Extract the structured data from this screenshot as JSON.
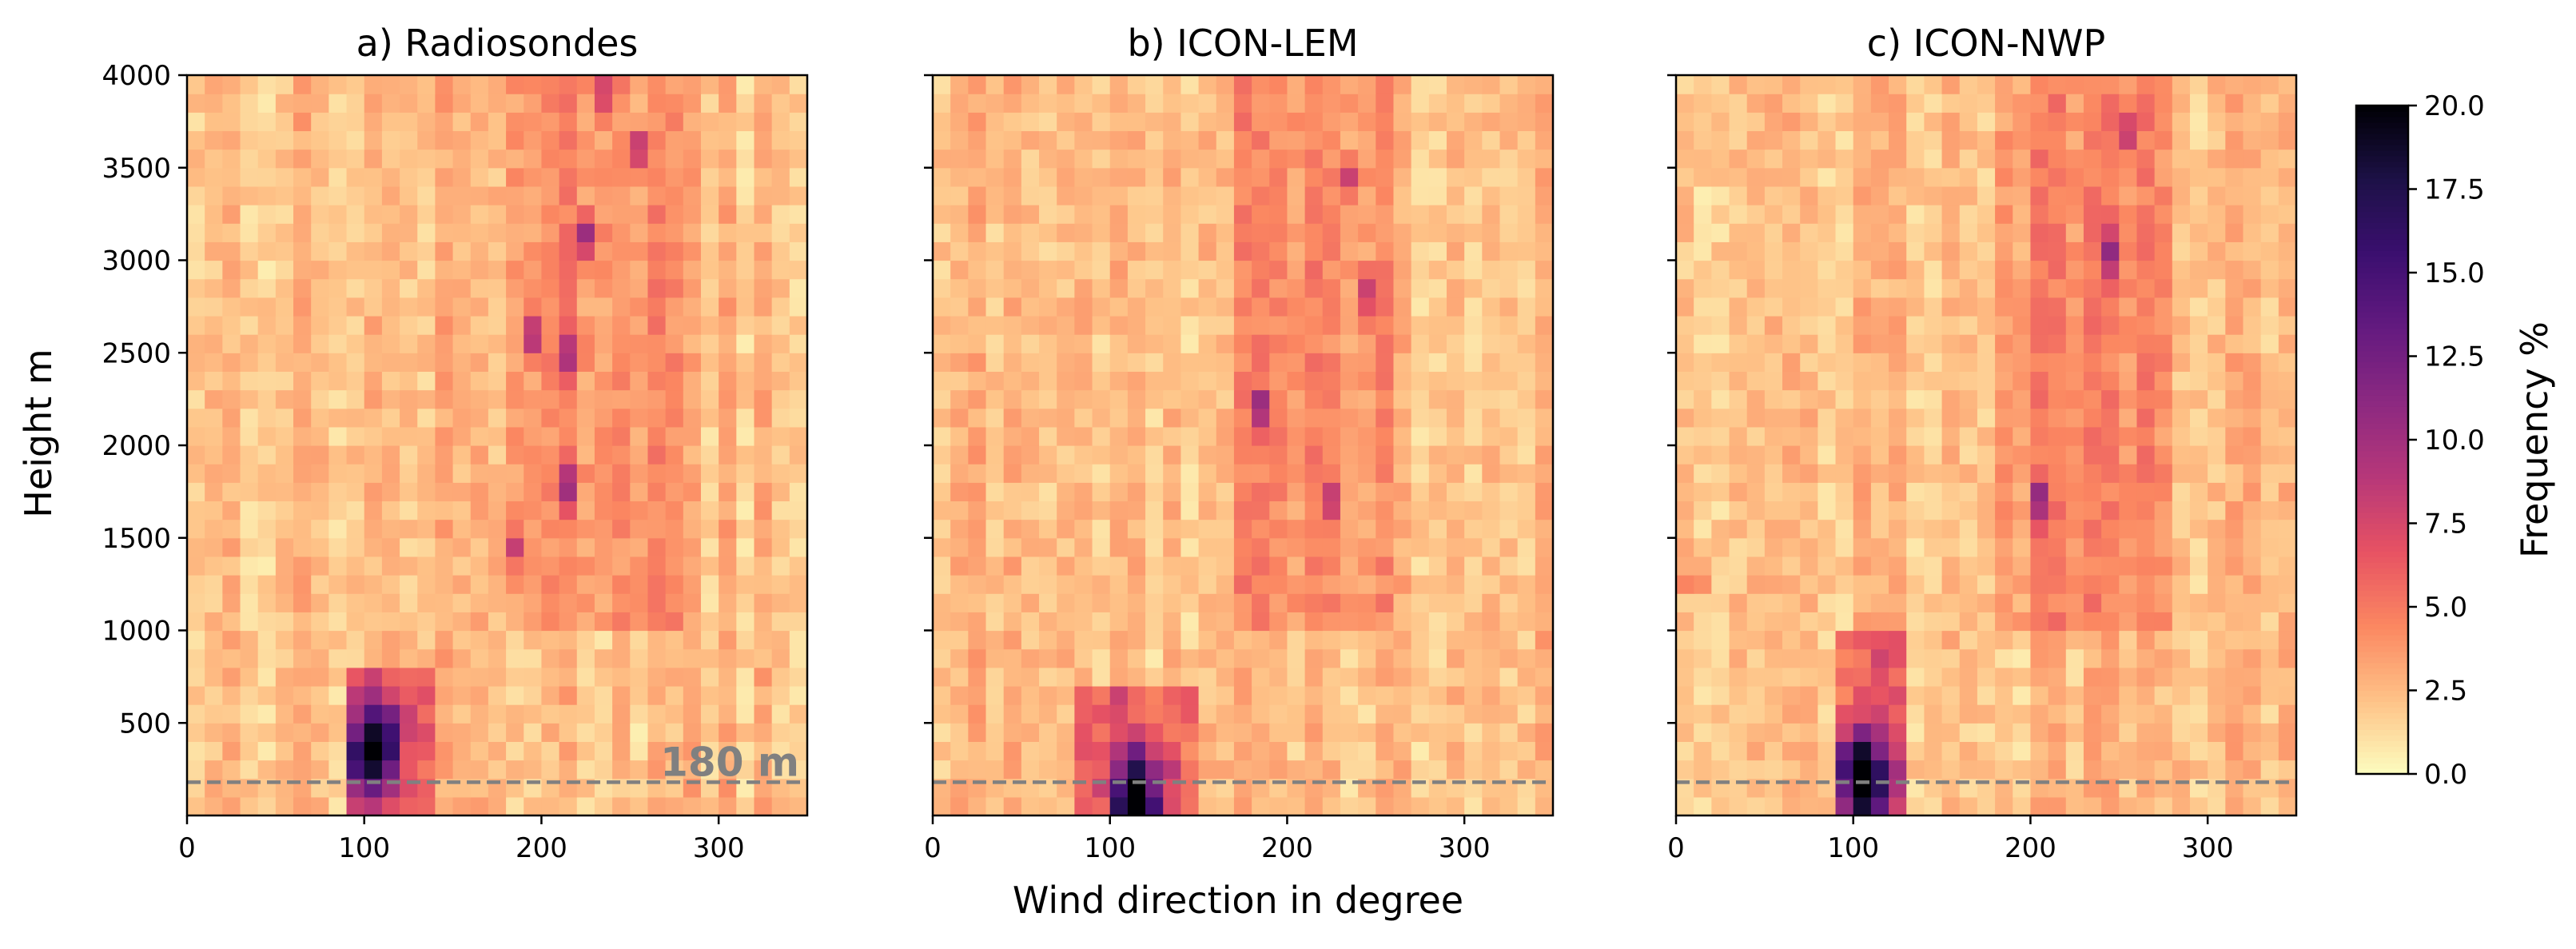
{
  "figure": {
    "ylabel": "Height m",
    "xlabel": "Wind direction in degree"
  },
  "chart_data": [
    {
      "type": "heatmap",
      "panel_id": "a",
      "title": "a) Radiosondes",
      "x_range": [
        0,
        350
      ],
      "y_range": [
        0,
        4000
      ],
      "x_bin_deg": 10,
      "y_bin_m": 100,
      "x_ticks": [
        0,
        100,
        200,
        300
      ],
      "y_ticks": [
        500,
        1000,
        1500,
        2000,
        2500,
        3000,
        3500,
        4000
      ],
      "reference_line": {
        "y": 180,
        "label": "180 m",
        "color": "#808080"
      },
      "peak": {
        "x": 105,
        "y": 350,
        "value": 19
      },
      "core_x_range": [
        100,
        130
      ],
      "core_y_max": 750,
      "upper_band_x": [
        180,
        280
      ],
      "hotspots": [
        {
          "x": 235,
          "y": 3900,
          "value": 8.5
        },
        {
          "x": 255,
          "y": 3600,
          "value": 8.0
        },
        {
          "x": 225,
          "y": 3150,
          "value": 9.5
        },
        {
          "x": 195,
          "y": 2600,
          "value": 9.0
        },
        {
          "x": 215,
          "y": 2500,
          "value": 8.5
        },
        {
          "x": 215,
          "y": 1800,
          "value": 8.5
        },
        {
          "x": 185,
          "y": 1450,
          "value": 7.0
        }
      ]
    },
    {
      "type": "heatmap",
      "panel_id": "b",
      "title": "b) ICON-LEM",
      "x_range": [
        0,
        350
      ],
      "y_range": [
        0,
        4000
      ],
      "x_bin_deg": 10,
      "y_bin_m": 100,
      "x_ticks": [
        0,
        100,
        200,
        300
      ],
      "y_ticks": [
        500,
        1000,
        1500,
        2000,
        2500,
        3000,
        3500,
        4000
      ],
      "reference_line": {
        "y": 180,
        "label": "",
        "color": "#808080"
      },
      "peak": {
        "x": 115,
        "y": 80,
        "value": 20
      },
      "core_x_range": [
        90,
        140
      ],
      "core_y_max": 650,
      "upper_band_x": [
        170,
        260
      ],
      "hotspots": [
        {
          "x": 185,
          "y": 2200,
          "value": 9.5
        },
        {
          "x": 235,
          "y": 3450,
          "value": 7.5
        },
        {
          "x": 245,
          "y": 2800,
          "value": 7.5
        },
        {
          "x": 225,
          "y": 1700,
          "value": 7.0
        }
      ]
    },
    {
      "type": "heatmap",
      "panel_id": "c",
      "title": "c) ICON-NWP",
      "x_range": [
        0,
        350
      ],
      "y_range": [
        0,
        4000
      ],
      "x_bin_deg": 10,
      "y_bin_m": 100,
      "x_ticks": [
        0,
        100,
        200,
        300
      ],
      "y_ticks": [
        500,
        1000,
        1500,
        2000,
        2500,
        3000,
        3500,
        4000
      ],
      "reference_line": {
        "y": 180,
        "label": "",
        "color": "#808080"
      },
      "peak": {
        "x": 105,
        "y": 180,
        "value": 20
      },
      "core_x_range": [
        95,
        125
      ],
      "core_y_max": 950,
      "upper_band_x": [
        180,
        280
      ],
      "hotspots": [
        {
          "x": 245,
          "y": 3050,
          "value": 9.0
        },
        {
          "x": 205,
          "y": 1700,
          "value": 9.0
        },
        {
          "x": 255,
          "y": 3700,
          "value": 8.0
        },
        {
          "x": 10,
          "y": 1300,
          "value": 7.0
        }
      ]
    }
  ],
  "colorbar": {
    "label": "Frequency %",
    "range": [
      0,
      20
    ],
    "ticks": [
      "0.0",
      "2.5",
      "5.0",
      "7.5",
      "10.0",
      "12.5",
      "15.0",
      "17.5",
      "20.0"
    ],
    "colormap": "magma_r",
    "colormap_stops": [
      "#fcfdbf",
      "#fec287",
      "#fb8761",
      "#e75263",
      "#b73779",
      "#8c2981",
      "#641a80",
      "#3b0f70",
      "#1d1147",
      "#000004"
    ]
  }
}
